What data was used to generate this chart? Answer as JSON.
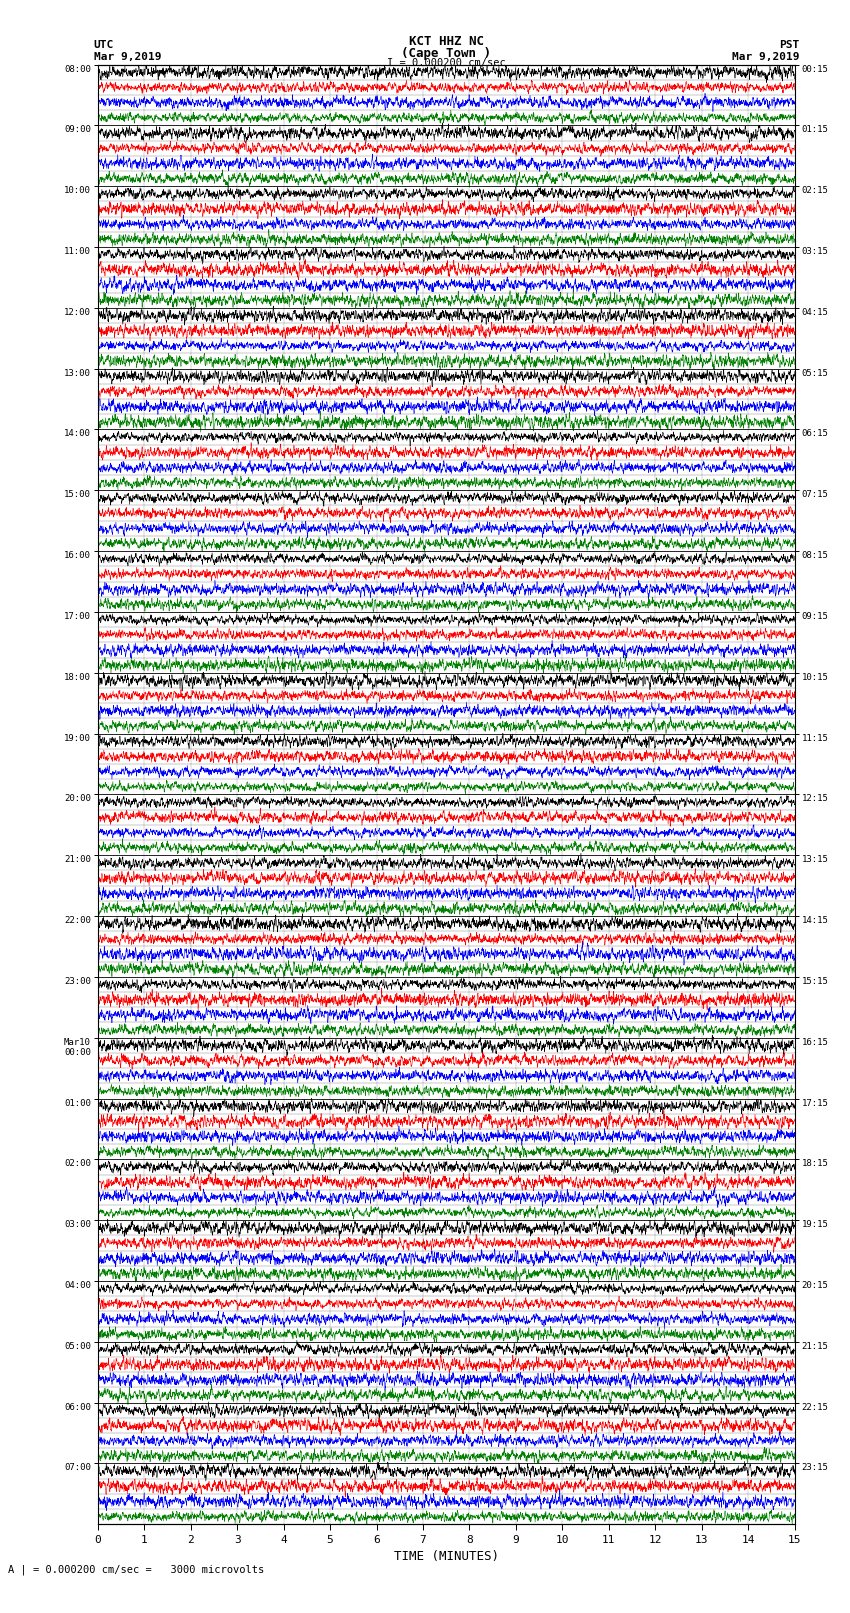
{
  "title_line1": "KCT HHZ NC",
  "title_line2": "(Cape Town )",
  "scale_label": "I = 0.000200 cm/sec",
  "utc_label": "UTC",
  "pst_label": "PST",
  "utc_date": "Mar 9,2019",
  "pst_date": "Mar 9,2019",
  "xlabel": "TIME (MINUTES)",
  "bottom_note": "A | = 0.000200 cm/sec =   3000 microvolts",
  "x_ticks": [
    0,
    1,
    2,
    3,
    4,
    5,
    6,
    7,
    8,
    9,
    10,
    11,
    12,
    13,
    14,
    15
  ],
  "minutes_per_row": 15,
  "num_hour_groups": 24,
  "traces_per_group": 4,
  "colors": [
    "black",
    "red",
    "blue",
    "green"
  ],
  "utc_times": [
    "08:00",
    "09:00",
    "10:00",
    "11:00",
    "12:00",
    "13:00",
    "14:00",
    "15:00",
    "16:00",
    "17:00",
    "18:00",
    "19:00",
    "20:00",
    "21:00",
    "22:00",
    "23:00",
    "Mar10\n00:00",
    "01:00",
    "02:00",
    "03:00",
    "04:00",
    "05:00",
    "06:00",
    "07:00"
  ],
  "pst_times": [
    "00:15",
    "01:15",
    "02:15",
    "03:15",
    "04:15",
    "05:15",
    "06:15",
    "07:15",
    "08:15",
    "09:15",
    "10:15",
    "11:15",
    "12:15",
    "13:15",
    "14:15",
    "15:15",
    "16:15",
    "17:15",
    "18:15",
    "19:15",
    "20:15",
    "21:15",
    "22:15",
    "23:15"
  ],
  "bg_color": "white",
  "trace_amplitude": 0.45,
  "seed": 42,
  "samples_per_row": 3000,
  "linewidth": 0.4
}
